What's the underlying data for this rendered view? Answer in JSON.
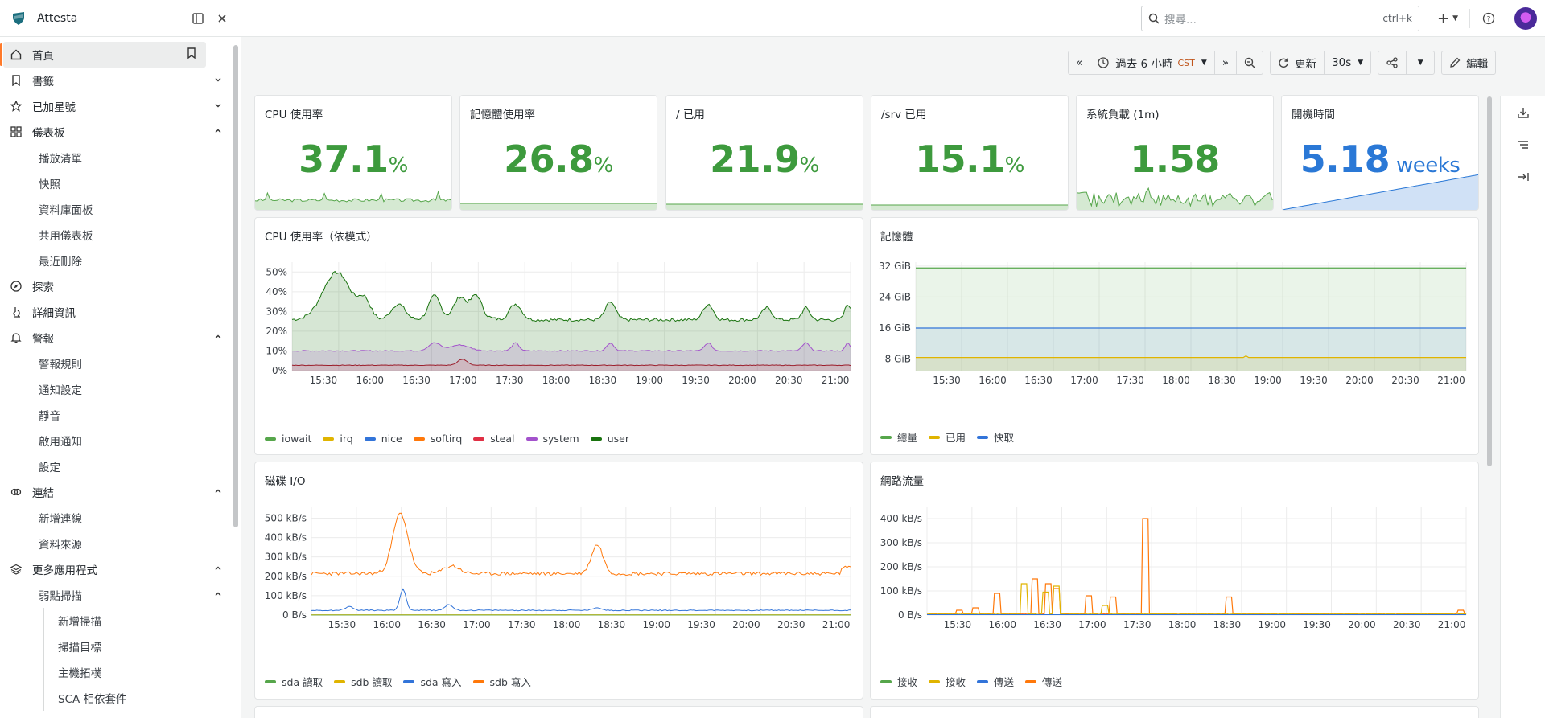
{
  "app": {
    "title": "Attesta"
  },
  "sidebar": {
    "items": [
      {
        "id": "home",
        "label": "首頁",
        "icon": "home-icon",
        "active": true,
        "extra": "bookmark-icon"
      },
      {
        "id": "bookmarks",
        "label": "書籤",
        "icon": "bookmark-icon",
        "chevron": "down"
      },
      {
        "id": "starred",
        "label": "已加星號",
        "icon": "star-icon",
        "chevron": "down"
      },
      {
        "id": "dashboards",
        "label": "儀表板",
        "icon": "grid-icon",
        "chevron": "up"
      },
      {
        "id": "playlists",
        "label": "播放清單",
        "sub": true
      },
      {
        "id": "snapshots",
        "label": "快照",
        "sub": true
      },
      {
        "id": "library",
        "label": "資料庫面板",
        "sub": true
      },
      {
        "id": "shared",
        "label": "共用儀表板",
        "sub": true
      },
      {
        "id": "recent",
        "label": "最近刪除",
        "sub": true
      },
      {
        "id": "explore",
        "label": "探索",
        "icon": "compass-icon"
      },
      {
        "id": "drilldown",
        "label": "詳細資訊",
        "icon": "microscope-icon"
      },
      {
        "id": "alerting",
        "label": "警報",
        "icon": "bell-icon",
        "chevron": "up"
      },
      {
        "id": "alert-rules",
        "label": "警報規則",
        "sub": true
      },
      {
        "id": "notif",
        "label": "通知設定",
        "sub": true
      },
      {
        "id": "silences",
        "label": "靜音",
        "sub": true
      },
      {
        "id": "enable-notif",
        "label": "啟用通知",
        "sub": true
      },
      {
        "id": "settings",
        "label": "設定",
        "sub": true
      },
      {
        "id": "connections",
        "label": "連結",
        "icon": "link-icon",
        "chevron": "up"
      },
      {
        "id": "add-conn",
        "label": "新增連線",
        "sub": true
      },
      {
        "id": "datasources",
        "label": "資料來源",
        "sub": true
      },
      {
        "id": "more-apps",
        "label": "更多應用程式",
        "icon": "layers-icon",
        "chevron": "up"
      },
      {
        "id": "vuln",
        "label": "弱點掃描",
        "sub": true,
        "chevron": "up"
      },
      {
        "id": "new-scan",
        "label": "新增掃描",
        "sub3": true
      },
      {
        "id": "scan-targets",
        "label": "掃描目標",
        "sub3": true
      },
      {
        "id": "topology",
        "label": "主機拓樸",
        "sub3": true
      },
      {
        "id": "sca",
        "label": "SCA 相依套件",
        "sub3": true
      }
    ]
  },
  "topbar": {
    "search_placeholder": "搜尋...",
    "search_shortcut": "ctrl+k"
  },
  "toolbar": {
    "time_range": "過去 6 小時",
    "timezone": "CST",
    "refresh_label": "更新",
    "refresh_interval": "30s",
    "edit_label": "編輯"
  },
  "stats": [
    {
      "title": "CPU 使用率",
      "value": "37.1",
      "unit": "%",
      "color": "#3d9a3d"
    },
    {
      "title": "記憶體使用率",
      "value": "26.8",
      "unit": "%",
      "color": "#3d9a3d"
    },
    {
      "title": "/ 已用",
      "value": "21.9",
      "unit": "%",
      "color": "#3d9a3d"
    },
    {
      "title": "/srv 已用",
      "value": "15.1",
      "unit": "%",
      "color": "#3d9a3d"
    },
    {
      "title": "系統負載 (1m)",
      "value": "1.58",
      "unit": "",
      "color": "#3d9a3d"
    },
    {
      "title": "開機時間",
      "value": "5.18",
      "unit": " weeks",
      "color": "#2a78d6"
    }
  ],
  "colors": {
    "green": "#56a64b",
    "yellow": "#e0b400",
    "blue": "#3274d9",
    "orange": "#ff780a",
    "red": "#e02f44",
    "purple": "#a352cc",
    "darkgreen": "#19730e"
  },
  "chart_data": [
    {
      "type": "area",
      "title": "CPU 使用率（依模式）",
      "x": [
        "15:30",
        "16:00",
        "16:30",
        "17:00",
        "17:30",
        "18:00",
        "18:30",
        "19:00",
        "19:30",
        "20:00",
        "20:30",
        "21:00"
      ],
      "yticks": [
        "0%",
        "10%",
        "20%",
        "30%",
        "40%",
        "50%"
      ],
      "ylim": [
        0,
        55
      ],
      "series": [
        {
          "name": "iowait",
          "color": "#56a64b"
        },
        {
          "name": "irq",
          "color": "#e0b400"
        },
        {
          "name": "nice",
          "color": "#3274d9"
        },
        {
          "name": "softirq",
          "color": "#ff780a"
        },
        {
          "name": "steal",
          "color": "#e02f44"
        },
        {
          "name": "system",
          "color": "#a352cc",
          "baseline": 10
        },
        {
          "name": "user",
          "color": "#19730e",
          "baseline": 26
        }
      ]
    },
    {
      "type": "area",
      "title": "記憶體",
      "x": [
        "15:30",
        "16:00",
        "16:30",
        "17:00",
        "17:30",
        "18:00",
        "18:30",
        "19:00",
        "19:30",
        "20:00",
        "20:30",
        "21:00"
      ],
      "yticks": [
        "8 GiB",
        "16 GiB",
        "24 GiB",
        "32 GiB"
      ],
      "ylim": [
        5,
        33
      ],
      "series": [
        {
          "name": "總量",
          "color": "#56a64b",
          "value": 31.5
        },
        {
          "name": "已用",
          "color": "#e0b400",
          "value": 8.4
        },
        {
          "name": "快取",
          "color": "#3274d9",
          "value": 16
        }
      ]
    },
    {
      "type": "line",
      "title": "磁碟 I/O",
      "x": [
        "15:30",
        "16:00",
        "16:30",
        "17:00",
        "17:30",
        "18:00",
        "18:30",
        "19:00",
        "19:30",
        "20:00",
        "20:30",
        "21:00"
      ],
      "yticks": [
        "0 B/s",
        "100 kB/s",
        "200 kB/s",
        "300 kB/s",
        "400 kB/s",
        "500 kB/s"
      ],
      "ylim": [
        0,
        560
      ],
      "series": [
        {
          "name": "sda 讀取",
          "color": "#56a64b"
        },
        {
          "name": "sdb 讀取",
          "color": "#e0b400"
        },
        {
          "name": "sda 寫入",
          "color": "#3274d9"
        },
        {
          "name": "sdb 寫入",
          "color": "#ff780a"
        }
      ]
    },
    {
      "type": "line",
      "title": "網路流量",
      "x": [
        "15:30",
        "16:00",
        "16:30",
        "17:00",
        "17:30",
        "18:00",
        "18:30",
        "19:00",
        "19:30",
        "20:00",
        "20:30",
        "21:00"
      ],
      "yticks": [
        "0 B/s",
        "100 kB/s",
        "200 kB/s",
        "300 kB/s",
        "400 kB/s"
      ],
      "ylim": [
        0,
        450
      ],
      "series": [
        {
          "name": "接收",
          "color": "#56a64b"
        },
        {
          "name": "接收",
          "color": "#e0b400"
        },
        {
          "name": "傳送",
          "color": "#3274d9"
        },
        {
          "name": "傳送",
          "color": "#ff780a"
        }
      ]
    }
  ]
}
